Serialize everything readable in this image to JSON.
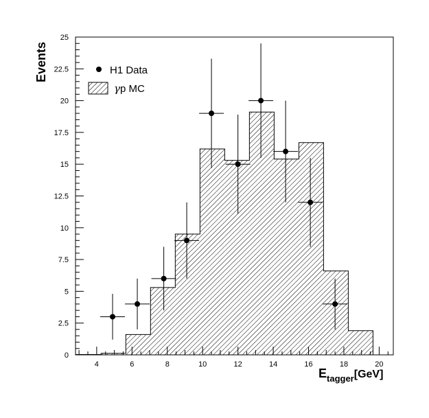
{
  "chart_data": {
    "type": "bar",
    "xlabel_main": "E",
    "xlabel_sub": "tagger",
    "xlabel_unit": "[GeV]",
    "ylabel": "Events",
    "xlim": [
      2.8,
      20.8
    ],
    "ylim": [
      0,
      25
    ],
    "x_ticks": [
      4,
      6,
      8,
      10,
      12,
      14,
      16,
      18,
      20
    ],
    "y_ticks": [
      0,
      2.5,
      5,
      7.5,
      10,
      12.5,
      15,
      17.5,
      20,
      22.5,
      25
    ],
    "y_tick_labels": [
      "0",
      "2.5",
      "5",
      "7.5",
      "10",
      "12.5",
      "15",
      "17.5",
      "20",
      "22.5",
      "25"
    ],
    "legend_position": "top-left",
    "series": [
      {
        "name": "H1 Data",
        "kind": "points-with-errors",
        "x": [
          4.9,
          6.3,
          7.8,
          9.1,
          10.5,
          12.0,
          13.3,
          14.7,
          16.1,
          17.5
        ],
        "y": [
          3,
          4,
          6,
          9,
          19,
          15,
          20,
          16,
          12,
          4
        ],
        "x_err": [
          0.7,
          0.7,
          0.7,
          0.7,
          0.7,
          0.7,
          0.7,
          0.7,
          0.7,
          0.7
        ],
        "y_err": [
          1.8,
          2.0,
          2.5,
          3.0,
          4.3,
          3.9,
          4.5,
          4.0,
          3.5,
          2.0
        ]
      },
      {
        "name": "γp MC",
        "name_gamma": "γ",
        "name_rest": "p MC",
        "kind": "hatched-histogram",
        "bin_edges": [
          2.8,
          4.25,
          5.65,
          7.05,
          8.45,
          9.85,
          11.25,
          12.65,
          14.05,
          15.45,
          16.85,
          18.25,
          19.65
        ],
        "values": [
          0.03,
          0.12,
          1.6,
          5.3,
          9.5,
          16.2,
          15.3,
          19.1,
          15.4,
          16.7,
          6.6,
          1.9
        ]
      }
    ]
  }
}
